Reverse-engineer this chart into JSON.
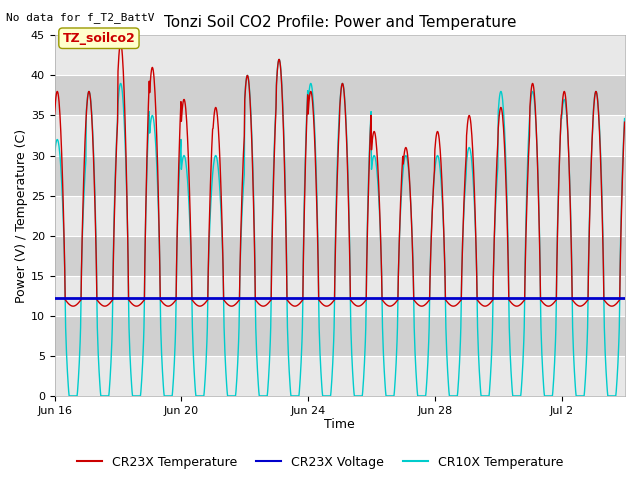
{
  "title": "Tonzi Soil CO2 Profile: Power and Temperature",
  "subtitle": "No data for f_T2_BattV",
  "xlabel": "Time",
  "ylabel": "Power (V) / Temperature (C)",
  "ylim": [
    0,
    45
  ],
  "yticks": [
    0,
    5,
    10,
    15,
    20,
    25,
    30,
    35,
    40,
    45
  ],
  "xtick_labels": [
    "Jun 16",
    "Jun 20",
    "Jun 24",
    "Jun 28",
    "Jul 2"
  ],
  "cr23x_voltage_value": 12.2,
  "background_color": "#ffffff",
  "plot_bg_color": "#d8d8d8",
  "band_color_light": "#e8e8e8",
  "band_color_dark": "#d0d0d0",
  "cr23x_temp_color": "#cc0000",
  "cr23x_voltage_color": "#0000cc",
  "cr10x_temp_color": "#00cccc",
  "legend_items": [
    "CR23X Temperature",
    "CR23X Voltage",
    "CR10X Temperature"
  ],
  "annotation_text": "TZ_soilco2",
  "title_fontsize": 11,
  "axis_fontsize": 9,
  "tick_fontsize": 8,
  "legend_fontsize": 9,
  "peaks_cr23x": [
    38,
    38,
    44,
    41,
    37,
    36,
    40,
    42,
    38,
    39,
    33,
    31,
    33,
    35,
    36,
    39,
    38,
    38,
    37
  ],
  "peaks_cr10x": [
    32,
    38,
    39,
    35,
    30,
    30,
    40,
    42,
    39,
    39,
    30,
    30,
    30,
    31,
    38,
    38,
    37,
    38,
    38
  ]
}
